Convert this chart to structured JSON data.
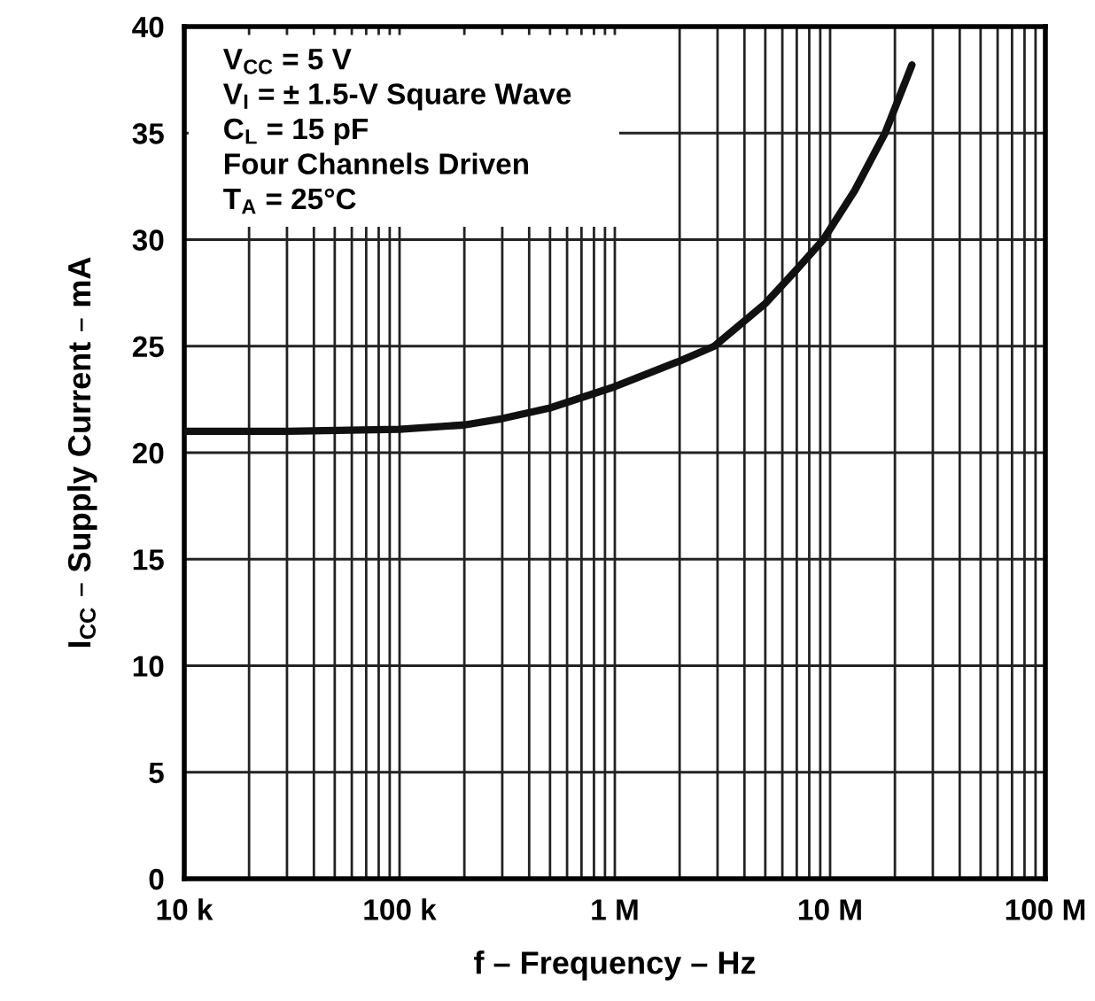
{
  "chart_data": {
    "type": "line",
    "xlabel": "f – Frequency – Hz",
    "ylabel": "I$_{CC}$ – Supply Current – mA",
    "log": "x",
    "grid": true,
    "marker": "none",
    "line_style": "solid",
    "xlim": [
      10000,
      100000000
    ],
    "ylim": [
      0,
      40
    ],
    "yticks": [
      0,
      5,
      10,
      15,
      20,
      25,
      30,
      35,
      40
    ],
    "xticks": [
      {
        "value": 10000,
        "label": "10 k"
      },
      {
        "value": 20000,
        "label": null
      },
      {
        "value": 30000,
        "label": null
      },
      {
        "value": 40000,
        "label": null
      },
      {
        "value": 50000,
        "label": null
      },
      {
        "value": 60000,
        "label": null
      },
      {
        "value": 70000,
        "label": null
      },
      {
        "value": 80000,
        "label": null
      },
      {
        "value": 90000,
        "label": null
      },
      {
        "value": 100000,
        "label": "100 k"
      },
      {
        "value": 200000,
        "label": null
      },
      {
        "value": 300000,
        "label": null
      },
      {
        "value": 400000,
        "label": null
      },
      {
        "value": 500000,
        "label": null
      },
      {
        "value": 600000,
        "label": null
      },
      {
        "value": 700000,
        "label": null
      },
      {
        "value": 800000,
        "label": null
      },
      {
        "value": 900000,
        "label": null
      },
      {
        "value": 1000000,
        "label": "1 M"
      },
      {
        "value": 2000000,
        "label": null
      },
      {
        "value": 3000000,
        "label": null
      },
      {
        "value": 4000000,
        "label": null
      },
      {
        "value": 5000000,
        "label": null
      },
      {
        "value": 6000000,
        "label": null
      },
      {
        "value": 7000000,
        "label": null
      },
      {
        "value": 8000000,
        "label": null
      },
      {
        "value": 9000000,
        "label": null
      },
      {
        "value": 10000000,
        "label": "10 M"
      },
      {
        "value": 20000000,
        "label": null
      },
      {
        "value": 30000000,
        "label": null
      },
      {
        "value": 40000000,
        "label": null
      },
      {
        "value": 50000000,
        "label": null
      },
      {
        "value": 60000000,
        "label": null
      },
      {
        "value": 70000000,
        "label": null
      },
      {
        "value": 80000000,
        "label": null
      },
      {
        "value": 90000000,
        "label": null
      },
      {
        "value": 100000000,
        "label": "100 M"
      }
    ],
    "series": [
      {
        "color": "#111111",
        "x": [
          10000,
          30000,
          100000,
          200000,
          300000,
          500000,
          1000000,
          2000000,
          2900000,
          5000000,
          7000000,
          9300000,
          13000000,
          18000000,
          24000000
        ],
        "values": [
          21,
          21,
          21.1,
          21.3,
          21.6,
          22.1,
          23.1,
          24.3,
          25,
          27,
          28.6,
          30,
          32.3,
          35,
          38.2
        ]
      }
    ],
    "annotations": [
      "V$_{CC}$ = 5 V",
      "V$_{I}$ = ± 1.5-V Square Wave",
      "C$_{L}$ = 15 pF",
      "Four Channels Driven",
      "T$_{A}$ = 25°C"
    ]
  }
}
